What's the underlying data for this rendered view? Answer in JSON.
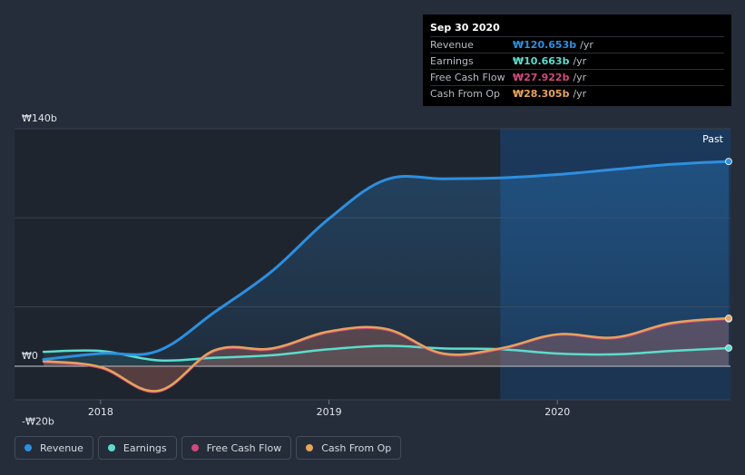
{
  "tooltip": {
    "date": "Sep 30 2020",
    "rows": [
      {
        "label": "Revenue",
        "value": "₩120.653b",
        "unit": "/yr",
        "color": "#2d8fe0"
      },
      {
        "label": "Earnings",
        "value": "₩10.663b",
        "unit": "/yr",
        "color": "#5ddccd"
      },
      {
        "label": "Free Cash Flow",
        "value": "₩27.922b",
        "unit": "/yr",
        "color": "#d0497e"
      },
      {
        "label": "Cash From Op",
        "value": "₩28.305b",
        "unit": "/yr",
        "color": "#e6a35c"
      }
    ]
  },
  "chart_data": {
    "type": "line",
    "y_tick_labels": [
      "₩140b",
      "₩0",
      "-₩20b"
    ],
    "ylim": [
      -20,
      140
    ],
    "xlim": [
      2017.75,
      2020.75
    ],
    "x_tick_labels": [
      {
        "label": "2018",
        "x": 2018.0
      },
      {
        "label": "2019",
        "x": 2019.0
      },
      {
        "label": "2020",
        "x": 2020.0
      }
    ],
    "past_label": "Past",
    "past_start_x": 2019.75,
    "series": [
      {
        "name": "Revenue",
        "color": "#2d8fe0",
        "points": [
          [
            2017.75,
            4
          ],
          [
            2018.0,
            7.5
          ],
          [
            2018.25,
            9
          ],
          [
            2018.5,
            32
          ],
          [
            2018.75,
            56
          ],
          [
            2019.0,
            87
          ],
          [
            2019.25,
            110
          ],
          [
            2019.5,
            110.5
          ],
          [
            2019.75,
            111
          ],
          [
            2020.0,
            113
          ],
          [
            2020.25,
            116
          ],
          [
            2020.5,
            119
          ],
          [
            2020.75,
            120.7
          ]
        ]
      },
      {
        "name": "Earnings",
        "color": "#5ddccd",
        "points": [
          [
            2017.75,
            8.5
          ],
          [
            2018.0,
            9
          ],
          [
            2018.25,
            3.5
          ],
          [
            2018.5,
            5
          ],
          [
            2018.75,
            6.5
          ],
          [
            2019.0,
            10
          ],
          [
            2019.25,
            12
          ],
          [
            2019.5,
            10.5
          ],
          [
            2019.75,
            10
          ],
          [
            2020.0,
            7.5
          ],
          [
            2020.25,
            7
          ],
          [
            2020.5,
            9
          ],
          [
            2020.75,
            10.7
          ]
        ]
      },
      {
        "name": "Free Cash Flow",
        "color": "#d0497e",
        "points": [
          [
            2017.75,
            2.5
          ],
          [
            2018.0,
            -1
          ],
          [
            2018.25,
            -15
          ],
          [
            2018.5,
            9
          ],
          [
            2018.75,
            10
          ],
          [
            2019.0,
            20
          ],
          [
            2019.25,
            21.5
          ],
          [
            2019.5,
            7
          ],
          [
            2019.75,
            10
          ],
          [
            2020.0,
            18.5
          ],
          [
            2020.25,
            16.5
          ],
          [
            2020.5,
            25
          ],
          [
            2020.75,
            27.9
          ]
        ]
      },
      {
        "name": "Cash From Op",
        "color": "#e6a35c",
        "points": [
          [
            2017.75,
            3
          ],
          [
            2018.0,
            -0.5
          ],
          [
            2018.25,
            -14.5
          ],
          [
            2018.5,
            9.5
          ],
          [
            2018.75,
            10.5
          ],
          [
            2019.0,
            20.5
          ],
          [
            2019.25,
            22
          ],
          [
            2019.5,
            7.5
          ],
          [
            2019.75,
            10.5
          ],
          [
            2020.0,
            18.8
          ],
          [
            2020.25,
            17
          ],
          [
            2020.5,
            25.5
          ],
          [
            2020.75,
            28.3
          ]
        ]
      }
    ]
  },
  "legend": [
    {
      "label": "Revenue",
      "color": "#2d8fe0"
    },
    {
      "label": "Earnings",
      "color": "#5ddccd"
    },
    {
      "label": "Free Cash Flow",
      "color": "#d0497e"
    },
    {
      "label": "Cash From Op",
      "color": "#e6a35c"
    }
  ]
}
